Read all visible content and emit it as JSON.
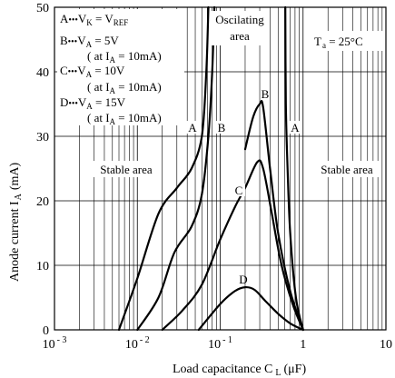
{
  "chart_data": {
    "type": "line",
    "x_scale": "log",
    "xlim": [
      0.001,
      10
    ],
    "ylim": [
      0,
      50
    ],
    "grid": true,
    "xlabel": "Load capacitance C",
    "xlabel_sub": "L",
    "xlabel_unit": "(μF)",
    "ylabel": "Anode current I",
    "ylabel_sub": "A",
    "ylabel_unit": "(mA)",
    "x_ticks": [
      {
        "base": "10",
        "exp": "- 3"
      },
      {
        "base": "10",
        "exp": "- 2"
      },
      {
        "base": "10",
        "exp": "- 1"
      },
      {
        "base": "1",
        "exp": ""
      },
      {
        "base": "10",
        "exp": ""
      }
    ],
    "y_ticks": [
      "0",
      "10",
      "20",
      "30",
      "40",
      "50"
    ],
    "legend": [
      {
        "key": "A",
        "text": "V",
        "sub": "K",
        "rest": " = V",
        "sub2": "REF"
      },
      {
        "key": "B",
        "text": "V",
        "sub": "A",
        "rest": " = 5V",
        "sub2": ""
      },
      {
        "key": "C",
        "text": "V",
        "sub": "A",
        "rest": " = 10V",
        "sub2": ""
      },
      {
        "key": "D",
        "text": "V",
        "sub": "A",
        "rest": " = 15V",
        "sub2": ""
      }
    ],
    "legend_condition": {
      "pre": "( at I",
      "sub": "A",
      "post": " = 10mA)"
    },
    "legend_bullet": "•••",
    "temperature": {
      "pre": "T",
      "sub": "a",
      "post": " = 25°C"
    },
    "regions": {
      "stable_left": "Stable area",
      "stable_right": "Stable area",
      "oscillating_line1": "Oscilating",
      "oscillating_line2": "area"
    },
    "series": [
      {
        "name": "A",
        "label_positions": [
          "left",
          "right"
        ],
        "left_boundary": [
          [
            0.006,
            0
          ],
          [
            0.01,
            8
          ],
          [
            0.018,
            18
          ],
          [
            0.03,
            22
          ],
          [
            0.045,
            25
          ],
          [
            0.06,
            30
          ],
          [
            0.068,
            40
          ],
          [
            0.072,
            50
          ]
        ],
        "right_boundary": [
          [
            1.0,
            0
          ],
          [
            0.82,
            5
          ],
          [
            0.7,
            15
          ],
          [
            0.65,
            25
          ],
          [
            0.62,
            35
          ],
          [
            0.61,
            50
          ]
        ]
      },
      {
        "name": "B",
        "label_positions": [
          "left",
          "peak"
        ],
        "left_boundary": [
          [
            0.01,
            0
          ],
          [
            0.018,
            5
          ],
          [
            0.028,
            12
          ],
          [
            0.045,
            16
          ],
          [
            0.06,
            21
          ],
          [
            0.072,
            30
          ],
          [
            0.08,
            40
          ],
          [
            0.085,
            50
          ]
        ],
        "right_boundary": [
          [
            0.2,
            28
          ],
          [
            0.25,
            33
          ],
          [
            0.3,
            35
          ],
          [
            0.33,
            34.5
          ],
          [
            0.4,
            25
          ],
          [
            0.5,
            15
          ],
          [
            0.7,
            6
          ],
          [
            1.0,
            0
          ]
        ]
      },
      {
        "name": "C",
        "label_positions": [
          "middle"
        ],
        "points": [
          [
            0.02,
            0
          ],
          [
            0.035,
            3
          ],
          [
            0.06,
            7
          ],
          [
            0.1,
            14
          ],
          [
            0.15,
            19
          ],
          [
            0.2,
            22
          ],
          [
            0.28,
            26
          ],
          [
            0.33,
            25
          ],
          [
            0.42,
            18
          ],
          [
            0.55,
            10
          ],
          [
            0.75,
            4
          ],
          [
            1.0,
            0
          ]
        ]
      },
      {
        "name": "D",
        "label_positions": [
          "peak"
        ],
        "points": [
          [
            0.055,
            0
          ],
          [
            0.1,
            4
          ],
          [
            0.15,
            6
          ],
          [
            0.2,
            6.6
          ],
          [
            0.26,
            6.2
          ],
          [
            0.35,
            4.5
          ],
          [
            0.5,
            2.5
          ],
          [
            0.7,
            1
          ],
          [
            1.0,
            0
          ]
        ]
      }
    ]
  }
}
